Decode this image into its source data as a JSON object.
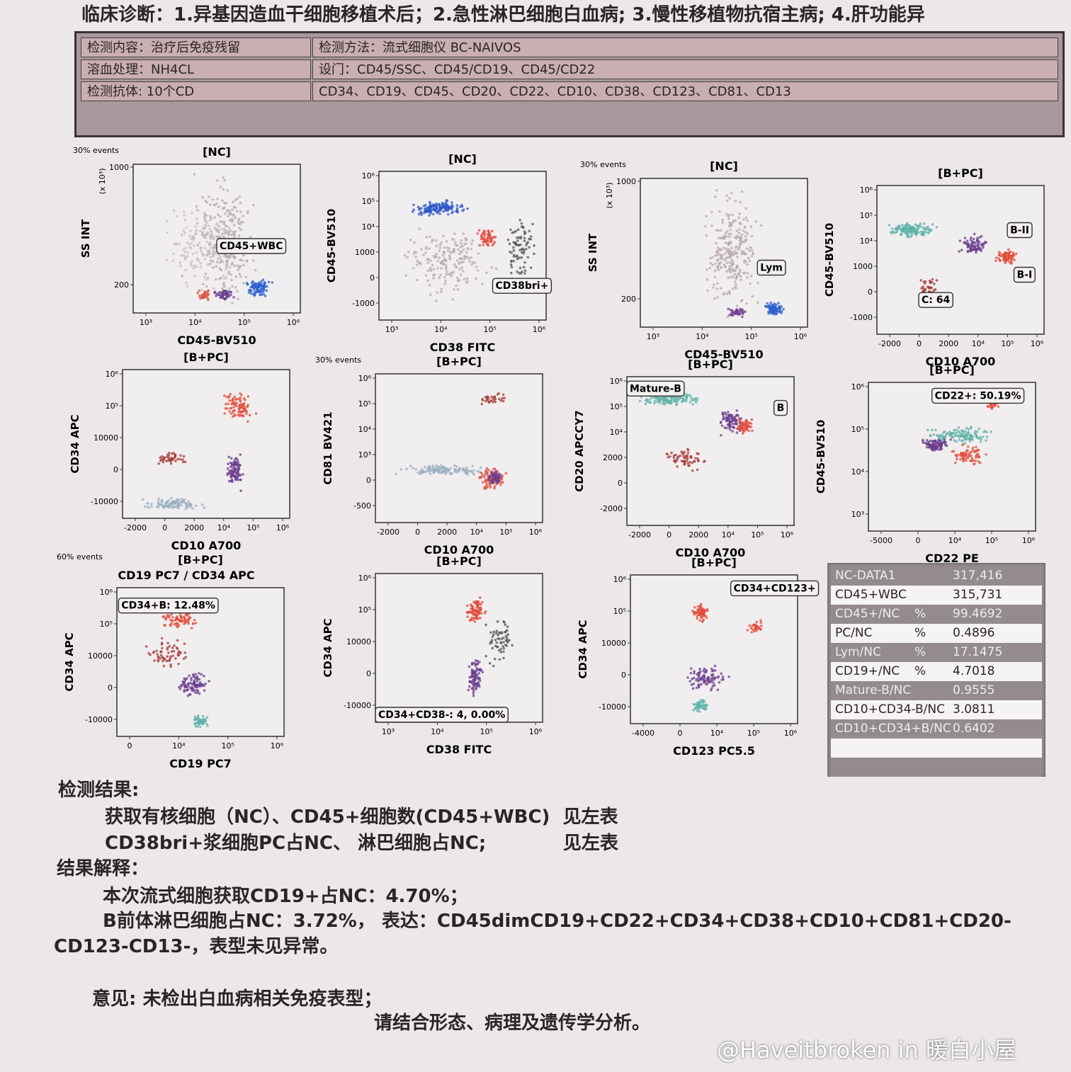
{
  "header": {
    "diagnosis": "临床诊断：1.异基因造血干细胞移植术后；2.急性淋巴细胞白血病; 3.慢性移植物抗宿主病; 4.肝功能异"
  },
  "info_table": {
    "rows": [
      [
        "检测内容：治疗后免疫残留",
        "检测方法：流式细胞仪 BC-NAIVOS"
      ],
      [
        "溶血处理：NH4CL",
        "设门：CD45/SSC、CD45/CD19、CD45/CD22"
      ],
      [
        "检测抗体: 10个CD",
        "CD34、CD19、CD45、CD20、CD22、CD10、CD38、CD123、CD81、CD13"
      ]
    ]
  },
  "plots": [
    {
      "events": "30% events",
      "title": "[NC]",
      "y_unit": "(x 10³)",
      "y_label": "SS INT",
      "yticks": [
        "1000",
        "200"
      ],
      "xticks": [
        "10³",
        "10⁴",
        "10⁵",
        "10⁶"
      ],
      "x_label": "CD45-BV510",
      "gates": [
        "CD45+WBC"
      ]
    },
    {
      "title": "[NC]",
      "y_label": "CD45-BV510",
      "yticks": [
        "10⁶",
        "10⁵",
        "10⁴",
        "1000",
        "0",
        "-1000"
      ],
      "xticks": [
        "10³",
        "10⁴",
        "10⁵",
        "10⁶"
      ],
      "x_label": "CD38 FITC",
      "gates": [
        "CD38bri+"
      ]
    },
    {
      "events": "30% events",
      "title": "[NC]",
      "y_unit": "(x 10³)",
      "y_label": "SS INT",
      "yticks": [
        "1000",
        "200"
      ],
      "xticks": [
        "10³",
        "10⁴",
        "10⁵",
        "10⁶"
      ],
      "x_label": "CD45-BV510",
      "gates": [
        "Lym"
      ]
    },
    {
      "title": "[B+PC]",
      "y_label": "CD45-BV510",
      "yticks": [
        "10⁶",
        "10⁵",
        "10⁴",
        "1000",
        "0",
        "-1000"
      ],
      "xticks": [
        "-2000",
        "0",
        "2000",
        "10⁴",
        "10⁵",
        "10⁶"
      ],
      "x_label": "CD10 A700",
      "gates": [
        "B-II",
        "B-I",
        "C: 64"
      ]
    },
    {
      "title": "[B+PC]",
      "y_label": "CD34 APC",
      "yticks": [
        "10⁶",
        "10⁵",
        "10000",
        "0",
        "-10000"
      ],
      "xticks": [
        "-2000",
        "0",
        "2000",
        "10⁴",
        "10⁵",
        "10⁶"
      ],
      "x_label": "CD10 A700"
    },
    {
      "events": "30% events",
      "title": "[B+PC]",
      "y_label": "CD81 BV421",
      "yticks": [
        "10⁶",
        "10⁵",
        "10⁴",
        "10³",
        "0",
        "-500"
      ],
      "xticks": [
        "-2000",
        "0",
        "2000",
        "10⁴",
        "10⁵",
        "10⁶"
      ],
      "x_label": "CD10 A700"
    },
    {
      "title": "[B+PC]",
      "y_label": "CD20 APCCY7",
      "yticks": [
        "10⁶",
        "10⁵",
        "10⁴",
        "2000",
        "0",
        "-2000"
      ],
      "xticks": [
        "-2000",
        "0",
        "2000",
        "10⁴",
        "10⁵",
        "10⁶"
      ],
      "x_label": "CD10 A700",
      "gates": [
        "Mature-B",
        "B"
      ]
    },
    {
      "title": "[B+PC]",
      "y_label": "CD45-BV510",
      "yticks": [
        "10⁶",
        "10⁵",
        "10⁴",
        "10³"
      ],
      "xticks": [
        "-5000",
        "0",
        "10⁴",
        "10⁵",
        "10⁶"
      ],
      "x_label": "CD22 PE",
      "gates": [
        "CD22+: 50.19%"
      ]
    },
    {
      "events": "60% events",
      "title": "[B+PC]",
      "subtitle": "CD19 PC7 / CD34 APC",
      "y_label": "CD34 APC",
      "yticks": [
        "10⁶",
        "10⁵",
        "10000",
        "0",
        "-10000"
      ],
      "xticks": [
        "0",
        "10⁴",
        "10⁵",
        "10⁶"
      ],
      "x_label": "CD19 PC7",
      "gates": [
        "CD34+B: 12.48%"
      ]
    },
    {
      "title": "[B+PC]",
      "y_label": "CD34 APC",
      "yticks": [
        "10⁶",
        "10⁵",
        "10000",
        "0",
        "-10000"
      ],
      "xticks": [
        "10³",
        "10⁴",
        "10⁵",
        "10⁶"
      ],
      "x_label": "CD38 FITC",
      "gates": [
        "CD34+CD38-: 4, 0.00%"
      ]
    },
    {
      "title": "[B+PC]",
      "y_label": "CD34 APC",
      "yticks": [
        "10⁶",
        "10⁵",
        "10000",
        "0",
        "-10000"
      ],
      "xticks": [
        "-4000",
        "0",
        "10⁴",
        "10⁵",
        "10⁶"
      ],
      "x_label": "CD123 PC5.5",
      "gates": [
        "CD34+CD123+"
      ]
    }
  ],
  "stats_table": {
    "rows": [
      {
        "label": "NC-DATA1",
        "value": "317,416"
      },
      {
        "label": "CD45+WBC",
        "value": "315,731"
      },
      {
        "label": "CD45+/NC",
        "unit": "%",
        "value": "99.4692"
      },
      {
        "label": "PC/NC",
        "unit": "%",
        "value": "0.4896"
      },
      {
        "label": "Lym/NC",
        "unit": "%",
        "value": "17.1475"
      },
      {
        "label": "CD19+/NC",
        "unit": "%",
        "value": "4.7018"
      },
      {
        "label": "Mature-B/NC",
        "value": "0.9555"
      },
      {
        "label": "CD10+CD34-B/NC",
        "value": "3.0811"
      },
      {
        "label": "CD10+CD34+B/NC",
        "value": "0.6402"
      }
    ]
  },
  "results": {
    "heading": "检测结果:",
    "lines": [
      "获取有核细胞（NC）、CD45+细胞数(CD45+WBC)  见左表",
      "CD38bri+浆细胞PC占NC、 淋巴细胞占NC;            见左表"
    ]
  },
  "interpretation": {
    "heading": "结果解释：",
    "lines": [
      "本次流式细胞获取CD19+占NC：4.70%；",
      "B前体淋巴细胞占NC：3.72%， 表达：CD45dimCD19+CD22+CD34+CD38+CD10+CD81+CD20-",
      "CD123-CD13-，表型未见异常。"
    ]
  },
  "opinion": {
    "line1": "意见: 未检出白血病相关免疫表型；",
    "line2": "请结合形态、病理及遗传学分析。"
  },
  "watermark": "@Haveitbroken in 暖白小屋"
}
